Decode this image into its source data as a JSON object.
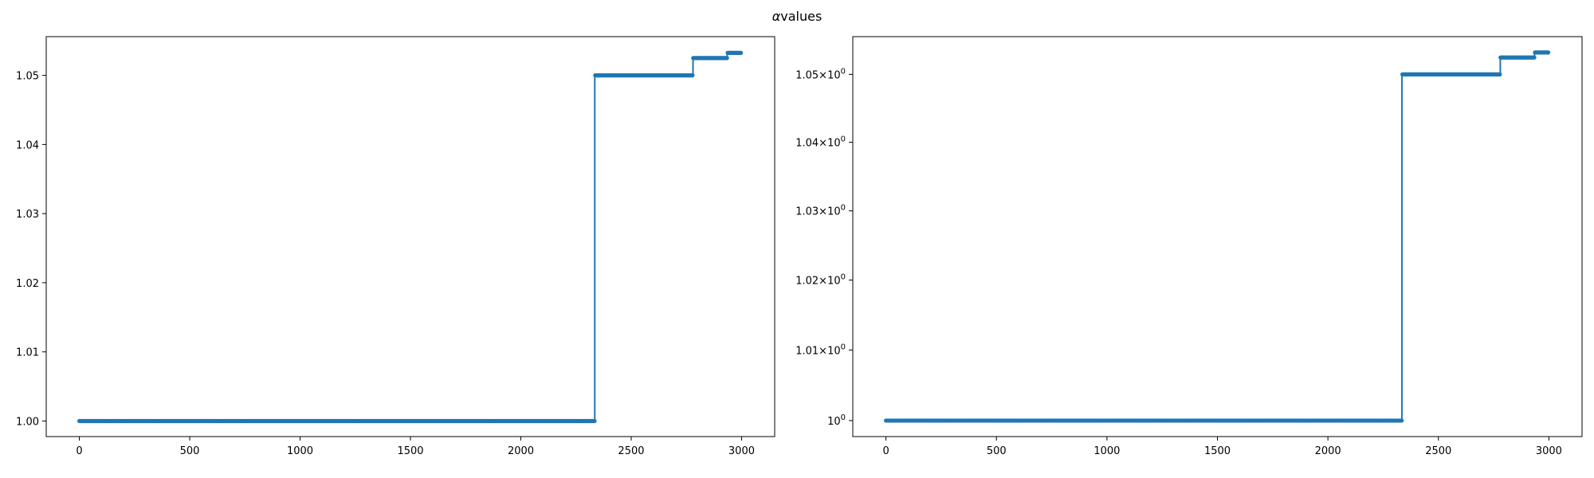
{
  "figure": {
    "title_symbol": "α",
    "title_text": "values"
  },
  "colors": {
    "series": "#1f77b4",
    "axes": "#000000",
    "background": "#ffffff"
  },
  "chart_data": [
    {
      "type": "line",
      "scale": "linear",
      "grid": false,
      "xlim": [
        -150,
        3150
      ],
      "ylim": [
        0.99775,
        1.0556
      ],
      "xticks": [
        0,
        500,
        1000,
        1500,
        2000,
        2500,
        3000
      ],
      "xtick_labels": [
        "0",
        "500",
        "1000",
        "1500",
        "2000",
        "2500",
        "3000"
      ],
      "yticks": [
        1.0,
        1.01,
        1.02,
        1.03,
        1.04,
        1.05
      ],
      "ytick_labels": [
        "1.00",
        "1.01",
        "1.02",
        "1.03",
        "1.04",
        "1.05"
      ],
      "series": [
        {
          "x_range": [
            0,
            2999
          ],
          "steps": [
            {
              "x_start": 0,
              "x_end": 2335,
              "y": 1.0
            },
            {
              "x_start": 2335,
              "x_end": 2780,
              "y": 1.05
            },
            {
              "x_start": 2780,
              "x_end": 2935,
              "y": 1.0525
            },
            {
              "x_start": 2935,
              "x_end": 2999,
              "y": 1.05325
            }
          ]
        }
      ]
    },
    {
      "type": "line",
      "scale": "log",
      "grid": false,
      "xlim": [
        -150,
        3150
      ],
      "ylim": [
        0.99775,
        1.0556
      ],
      "xticks": [
        0,
        500,
        1000,
        1500,
        2000,
        2500,
        3000
      ],
      "xtick_labels": [
        "0",
        "500",
        "1000",
        "1500",
        "2000",
        "2500",
        "3000"
      ],
      "yticks": [
        1.0,
        1.01,
        1.02,
        1.03,
        1.04,
        1.05
      ],
      "ytick_labels": [
        {
          "base": "10",
          "exp": "0"
        },
        {
          "base": "1.01×10",
          "exp": "0"
        },
        {
          "base": "1.02×10",
          "exp": "0"
        },
        {
          "base": "1.03×10",
          "exp": "0"
        },
        {
          "base": "1.04×10",
          "exp": "0"
        },
        {
          "base": "1.05×10",
          "exp": "0"
        }
      ],
      "series": [
        {
          "x_range": [
            0,
            2999
          ],
          "steps": [
            {
              "x_start": 0,
              "x_end": 2335,
              "y": 1.0
            },
            {
              "x_start": 2335,
              "x_end": 2780,
              "y": 1.05
            },
            {
              "x_start": 2780,
              "x_end": 2935,
              "y": 1.0525
            },
            {
              "x_start": 2935,
              "x_end": 2999,
              "y": 1.05325
            }
          ]
        }
      ]
    }
  ]
}
